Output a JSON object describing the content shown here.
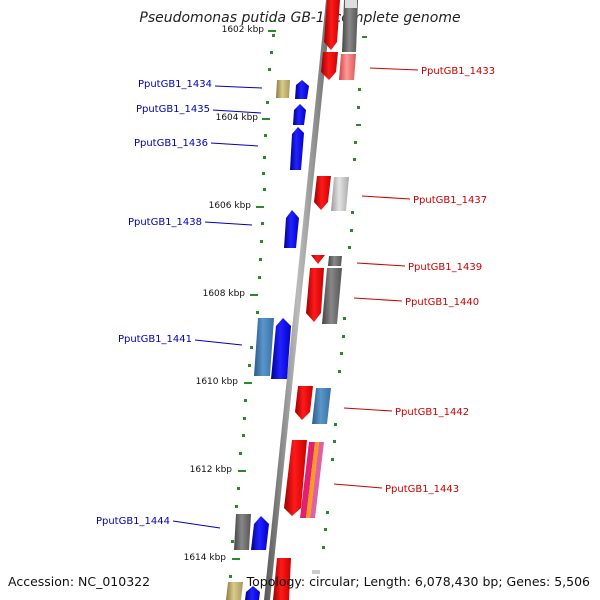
{
  "title": "Pseudomonas putida GB-1, complete genome",
  "footer": {
    "accession": "Accession: NC_010322",
    "summary": "Topology: circular; Length: 6,078,430 bp; Genes: 5,506"
  },
  "colors": {
    "forward_gene": "#ee0000",
    "reverse_gene": "#1010ee",
    "forward_label": "#cc0000",
    "reverse_label": "#0000bb",
    "tick": "#2a8a2a",
    "backbone": "#8a8a8a"
  },
  "scale_labels": [
    "1602 kbp",
    "1604 kbp",
    "1606 kbp",
    "1608 kbp",
    "1610 kbp",
    "1612 kbp",
    "1614 kbp"
  ],
  "gene_labels_left": [
    "PputGB1_1434",
    "PputGB1_1435",
    "PputGB1_1436",
    "PputGB1_1438",
    "PputGB1_1441",
    "PputGB1_1444"
  ],
  "gene_labels_right": [
    "PputGB1_1433",
    "PputGB1_1437",
    "PputGB1_1439",
    "PputGB1_1440",
    "PputGB1_1442",
    "PputGB1_1443"
  ]
}
